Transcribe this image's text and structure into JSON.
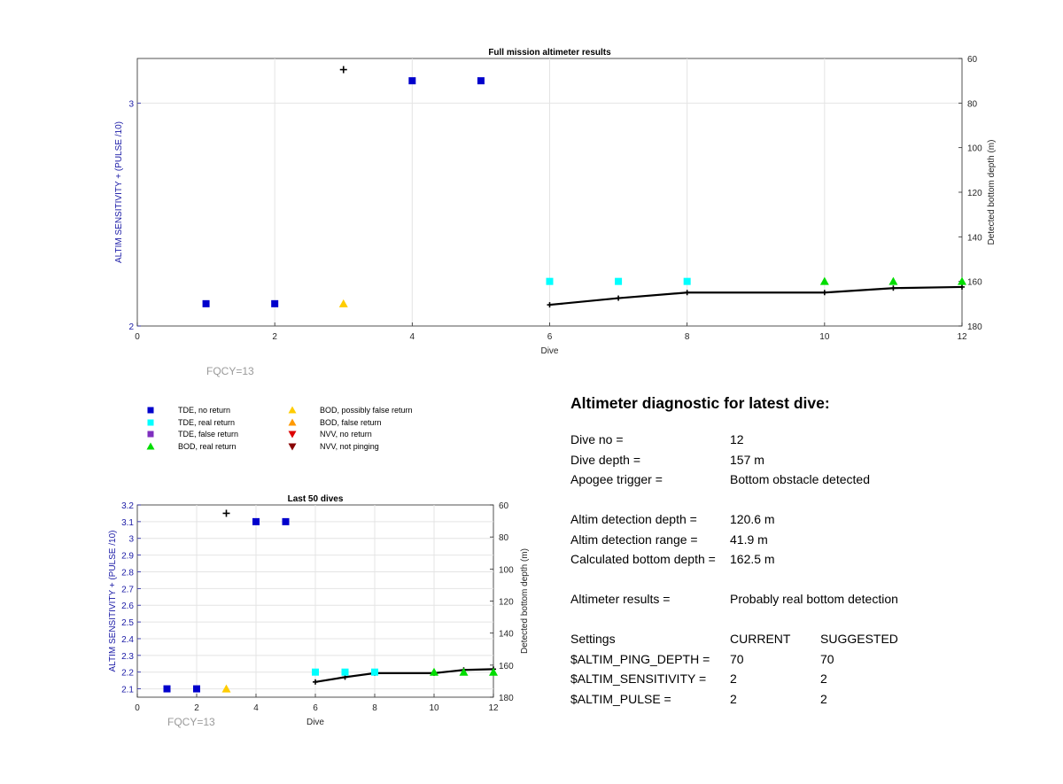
{
  "chart_data": [
    {
      "type": "scatter",
      "title": "Full mission altimeter results",
      "xlabel": "Dive",
      "ylabel": "ALTIM SENSITIVITY + (PULSE /10)",
      "y2label": "Detected bottom depth (m)",
      "xlim": [
        0,
        12
      ],
      "ylim": [
        2,
        3.2
      ],
      "y2lim": [
        60,
        180
      ],
      "y2_reversed": true,
      "xticks": [
        "0",
        "2",
        "4",
        "6",
        "8",
        "10",
        "12"
      ],
      "yticks": [
        "2",
        "3"
      ],
      "y2ticks": [
        "60",
        "80",
        "100",
        "120",
        "140",
        "160",
        "180"
      ],
      "grid": true,
      "annotation": "FQCY=13",
      "series": [
        {
          "name": "TDE, no return",
          "marker": "square",
          "color": "#0000cc",
          "points": [
            [
              1,
              2.1
            ],
            [
              2,
              2.1
            ],
            [
              4,
              3.1
            ],
            [
              5,
              3.1
            ]
          ]
        },
        {
          "name": "TDE, real return",
          "marker": "square",
          "color": "#00ffff",
          "points": [
            [
              6,
              2.2
            ],
            [
              7,
              2.2
            ],
            [
              8,
              2.2
            ]
          ]
        },
        {
          "name": "BOD, possibly false return",
          "marker": "triangle-up",
          "color": "#ffcc00",
          "points": [
            [
              3,
              2.1
            ]
          ]
        },
        {
          "name": "BOD, real return",
          "marker": "triangle-up",
          "color": "#00dd00",
          "points": [
            [
              10,
              2.2
            ],
            [
              11,
              2.2
            ],
            [
              12,
              2.2
            ]
          ]
        },
        {
          "name": "",
          "marker": "plus",
          "color": "#000000",
          "points": [
            [
              3,
              3.15
            ]
          ]
        }
      ],
      "bottom_depth_line": {
        "axis": "right",
        "color": "#000000",
        "points": [
          [
            6,
            170.5
          ],
          [
            7,
            167.5
          ],
          [
            8,
            165
          ],
          [
            10,
            165
          ],
          [
            11,
            163
          ],
          [
            12,
            162.5
          ]
        ]
      }
    },
    {
      "type": "scatter",
      "title": "Last 50 dives",
      "xlabel": "Dive",
      "ylabel": "ALTIM SENSITIVITY + (PULSE /10)",
      "y2label": "Detected bottom depth (m)",
      "xlim": [
        0,
        12
      ],
      "ylim": [
        2.05,
        3.2
      ],
      "y2lim": [
        60,
        180
      ],
      "y2_reversed": true,
      "xticks": [
        "0",
        "2",
        "4",
        "6",
        "8",
        "10",
        "12"
      ],
      "yticks": [
        "2.1",
        "2.2",
        "2.3",
        "2.4",
        "2.5",
        "2.6",
        "2.7",
        "2.8",
        "2.9",
        "3",
        "3.1",
        "3.2"
      ],
      "y2ticks": [
        "60",
        "80",
        "100",
        "120",
        "140",
        "160",
        "180"
      ],
      "grid": true,
      "annotation": "FQCY=13",
      "series": [
        {
          "name": "TDE, no return",
          "marker": "square",
          "color": "#0000cc",
          "points": [
            [
              1,
              2.1
            ],
            [
              2,
              2.1
            ],
            [
              4,
              3.1
            ],
            [
              5,
              3.1
            ]
          ]
        },
        {
          "name": "TDE, real return",
          "marker": "square",
          "color": "#00ffff",
          "points": [
            [
              6,
              2.2
            ],
            [
              7,
              2.2
            ],
            [
              8,
              2.2
            ]
          ]
        },
        {
          "name": "BOD, possibly false return",
          "marker": "triangle-up",
          "color": "#ffcc00",
          "points": [
            [
              3,
              2.1
            ]
          ]
        },
        {
          "name": "BOD, real return",
          "marker": "triangle-up",
          "color": "#00dd00",
          "points": [
            [
              10,
              2.2
            ],
            [
              11,
              2.2
            ],
            [
              12,
              2.2
            ]
          ]
        },
        {
          "name": "",
          "marker": "plus",
          "color": "#000000",
          "points": [
            [
              3,
              3.15
            ]
          ]
        }
      ],
      "bottom_depth_line": {
        "axis": "right",
        "color": "#000000",
        "points": [
          [
            6,
            170.5
          ],
          [
            7,
            167.5
          ],
          [
            8,
            165
          ],
          [
            10,
            165
          ],
          [
            11,
            163
          ],
          [
            12,
            162.5
          ]
        ]
      }
    }
  ],
  "legend": [
    {
      "label": "TDE, no return",
      "marker": "square",
      "color": "#0000cc"
    },
    {
      "label": "TDE, real return",
      "marker": "square",
      "color": "#00ffff"
    },
    {
      "label": "TDE, false return",
      "marker": "square",
      "color": "#7f2fbf"
    },
    {
      "label": "BOD, real return",
      "marker": "triangle-up",
      "color": "#00dd00"
    },
    {
      "label": "BOD, possibly false return",
      "marker": "triangle-up",
      "color": "#ffcc00"
    },
    {
      "label": "BOD, false return",
      "marker": "triangle-up",
      "color": "#ff9900"
    },
    {
      "label": "NVV, no return",
      "marker": "triangle-down",
      "color": "#dd0000"
    },
    {
      "label": "NVV, not pinging",
      "marker": "triangle-down",
      "color": "#880000"
    }
  ],
  "diagnostic": {
    "title": "Altimeter diagnostic for latest dive:",
    "dive_no_label": "Dive no =",
    "dive_no": "12",
    "dive_depth_label": "Dive depth =",
    "dive_depth": "157 m",
    "apogee_label": "Apogee trigger =",
    "apogee": "Bottom obstacle detected",
    "det_depth_label": "Altim detection depth =",
    "det_depth": "120.6 m",
    "det_range_label": "Altim detection range =",
    "det_range": "41.9 m",
    "calc_depth_label": "Calculated bottom depth =",
    "calc_depth": "162.5 m",
    "results_label": "Altimeter results =",
    "results": "Probably real bottom detection",
    "settings_label": "Settings",
    "current_label": "CURRENT",
    "suggested_label": "SUGGESTED",
    "ping_label": "$ALTIM_PING_DEPTH =",
    "ping_current": "70",
    "ping_suggested": "70",
    "sens_label": "$ALTIM_SENSITIVITY =",
    "sens_current": "2",
    "sens_suggested": "2",
    "pulse_label": "$ALTIM_PULSE =",
    "pulse_current": "2",
    "pulse_suggested": "2"
  },
  "colors": {
    "left_axis": "#1a1aa6",
    "grid": "#e4e4e4",
    "annotation": "#9a9a9a"
  }
}
